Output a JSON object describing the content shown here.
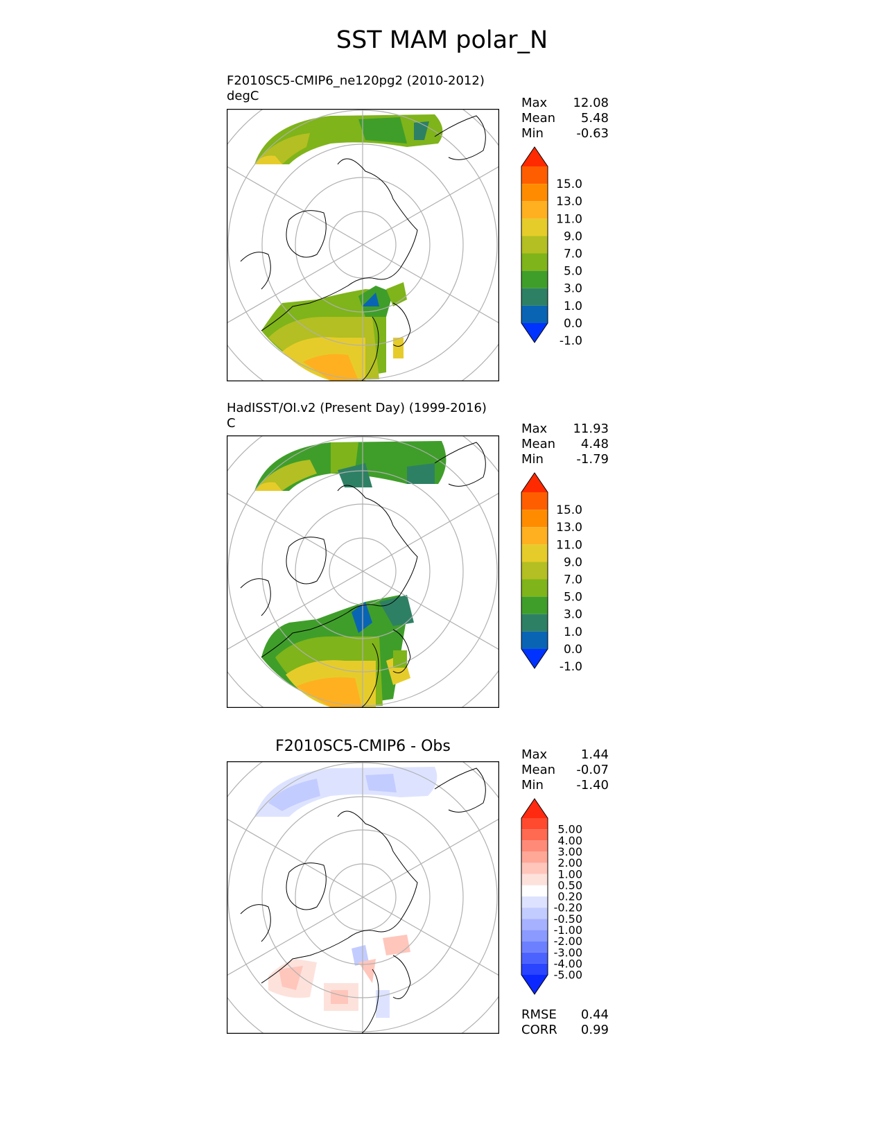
{
  "figure": {
    "title": "SST MAM polar_N"
  },
  "panels": [
    {
      "title_line1": "F2010SC5-CMIP6_ne120pg2 (2010-2012)",
      "title_line2": "degC",
      "stats": [
        {
          "label": "Max",
          "value": "12.08"
        },
        {
          "label": "Mean",
          "value": "5.48"
        },
        {
          "label": "Min",
          "value": "-0.63"
        }
      ]
    },
    {
      "title_line1": "HadISST/OI.v2 (Present Day) (1999-2016)",
      "title_line2": "C",
      "stats": [
        {
          "label": "Max",
          "value": "11.93"
        },
        {
          "label": "Mean",
          "value": "4.48"
        },
        {
          "label": "Min",
          "value": "-1.79"
        }
      ]
    },
    {
      "title": "F2010SC5-CMIP6 - Obs",
      "stats": [
        {
          "label": "Max",
          "value": "1.44"
        },
        {
          "label": "Mean",
          "value": "-0.07"
        },
        {
          "label": "Min",
          "value": "-1.40"
        }
      ],
      "extra_stats": [
        {
          "label": "RMSE",
          "value": "0.44"
        },
        {
          "label": "CORR",
          "value": "0.99"
        }
      ]
    }
  ],
  "colorbars": {
    "sst": {
      "ticks": [
        "15.0",
        "13.0",
        "11.0",
        "9.0",
        "7.0",
        "5.0",
        "3.0",
        "1.0",
        "0.0",
        "-1.0"
      ],
      "colors": [
        "#ff2a00",
        "#ff5e00",
        "#ff8c00",
        "#ffb020",
        "#e6cc2a",
        "#b3bf22",
        "#7fb41a",
        "#3f9e2a",
        "#2e8064",
        "#0a64b4",
        "#0033ff"
      ]
    },
    "diff": {
      "ticks": [
        "5.00",
        "4.00",
        "3.00",
        "2.00",
        "1.00",
        "0.50",
        "0.20",
        "-0.20",
        "-0.50",
        "-1.00",
        "-2.00",
        "-3.00",
        "-4.00",
        "-5.00"
      ],
      "colors": [
        "#ff2a10",
        "#ff4a30",
        "#ff6a50",
        "#ff8a78",
        "#ffa898",
        "#ffc6bc",
        "#fde2dc",
        "#ffffff",
        "#dde3ff",
        "#c3ccff",
        "#a6b2ff",
        "#8a9aff",
        "#6c80ff",
        "#4c62ff",
        "#2a44ff",
        "#0a28ff"
      ]
    }
  }
}
